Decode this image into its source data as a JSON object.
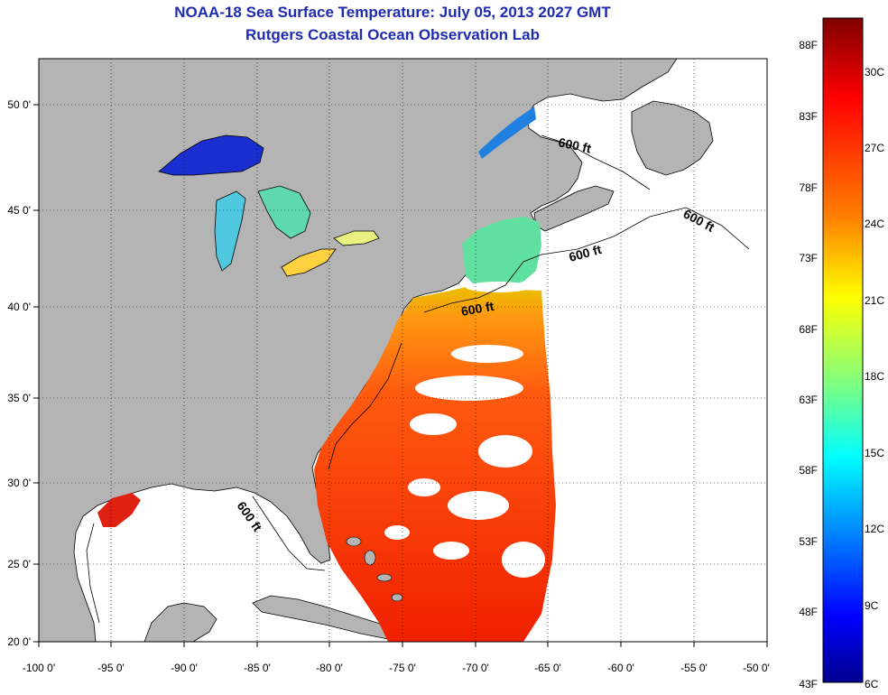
{
  "header": {
    "title": "NOAA-18 Sea Surface Temperature:  July 05, 2013 2027 GMT",
    "subtitle": "Rutgers Coastal Ocean Observation Lab"
  },
  "map": {
    "lon_ticks": [
      "-100 0'",
      "-95 0'",
      "-90 0'",
      "-85 0'",
      "-80 0'",
      "-75 0'",
      "-70 0'",
      "-65 0'",
      "-60 0'",
      "-55 0'",
      "-50 0'"
    ],
    "lat_ticks": [
      "50 0'",
      "45 0'",
      "40 0'",
      "35 0'",
      "30 0'",
      "25 0'",
      "20 0'"
    ],
    "contour_label": "600 ft",
    "colors": {
      "land": "#b4b4b4",
      "nodata": "#ffffff",
      "coast": "#000000"
    }
  },
  "colorbar": {
    "fahrenheit_labels": [
      "88F",
      "83F",
      "78F",
      "73F",
      "68F",
      "63F",
      "58F",
      "53F",
      "48F",
      "43F"
    ],
    "celsius_labels": [
      "30C",
      "27C",
      "24C",
      "21C",
      "18C",
      "15C",
      "12C",
      "9C",
      "6C"
    ],
    "colors": [
      "#7f0000",
      "#ff0000",
      "#ff8000",
      "#ffff00",
      "#80ff80",
      "#00ffff",
      "#0080ff",
      "#0000ff",
      "#00008f"
    ]
  }
}
